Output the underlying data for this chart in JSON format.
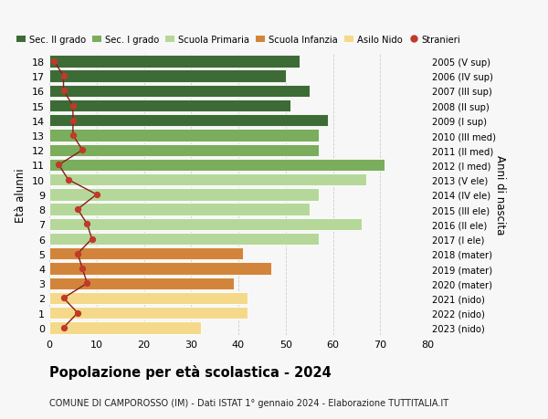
{
  "ages": [
    18,
    17,
    16,
    15,
    14,
    13,
    12,
    11,
    10,
    9,
    8,
    7,
    6,
    5,
    4,
    3,
    2,
    1,
    0
  ],
  "right_labels": [
    "2005 (V sup)",
    "2006 (IV sup)",
    "2007 (III sup)",
    "2008 (II sup)",
    "2009 (I sup)",
    "2010 (III med)",
    "2011 (II med)",
    "2012 (I med)",
    "2013 (V ele)",
    "2014 (IV ele)",
    "2015 (III ele)",
    "2016 (II ele)",
    "2017 (I ele)",
    "2018 (mater)",
    "2019 (mater)",
    "2020 (mater)",
    "2021 (nido)",
    "2022 (nido)",
    "2023 (nido)"
  ],
  "bar_values": [
    53,
    50,
    55,
    51,
    59,
    57,
    57,
    71,
    67,
    57,
    55,
    66,
    57,
    41,
    47,
    39,
    42,
    42,
    32
  ],
  "bar_colors": [
    "#3d6b35",
    "#3d6b35",
    "#3d6b35",
    "#3d6b35",
    "#3d6b35",
    "#7aad5c",
    "#7aad5c",
    "#7aad5c",
    "#b5d89a",
    "#b5d89a",
    "#b5d89a",
    "#b5d89a",
    "#b5d89a",
    "#d2853a",
    "#d2853a",
    "#d2853a",
    "#f5d98b",
    "#f5d98b",
    "#f5d98b"
  ],
  "stranieri_values": [
    1,
    3,
    3,
    5,
    5,
    5,
    7,
    2,
    4,
    10,
    6,
    8,
    9,
    6,
    7,
    8,
    3,
    6,
    3
  ],
  "legend_labels": [
    "Sec. II grado",
    "Sec. I grado",
    "Scuola Primaria",
    "Scuola Infanzia",
    "Asilo Nido",
    "Stranieri"
  ],
  "legend_colors": [
    "#3d6b35",
    "#7aad5c",
    "#b5d89a",
    "#d2853a",
    "#f5d98b",
    "#c0392b"
  ],
  "title": "Popolazione per età scolastica - 2024",
  "subtitle": "COMUNE DI CAMPOROSSO (IM) - Dati ISTAT 1° gennaio 2024 - Elaborazione TUTTITALIA.IT",
  "ylabel_left": "Età alunni",
  "ylabel_right": "Anni di nascita",
  "xlim": [
    0,
    80
  ],
  "xticks": [
    0,
    10,
    20,
    30,
    40,
    50,
    60,
    70,
    80
  ],
  "background_color": "#f7f7f7",
  "grid_color": "#cccccc",
  "bar_height": 0.82
}
